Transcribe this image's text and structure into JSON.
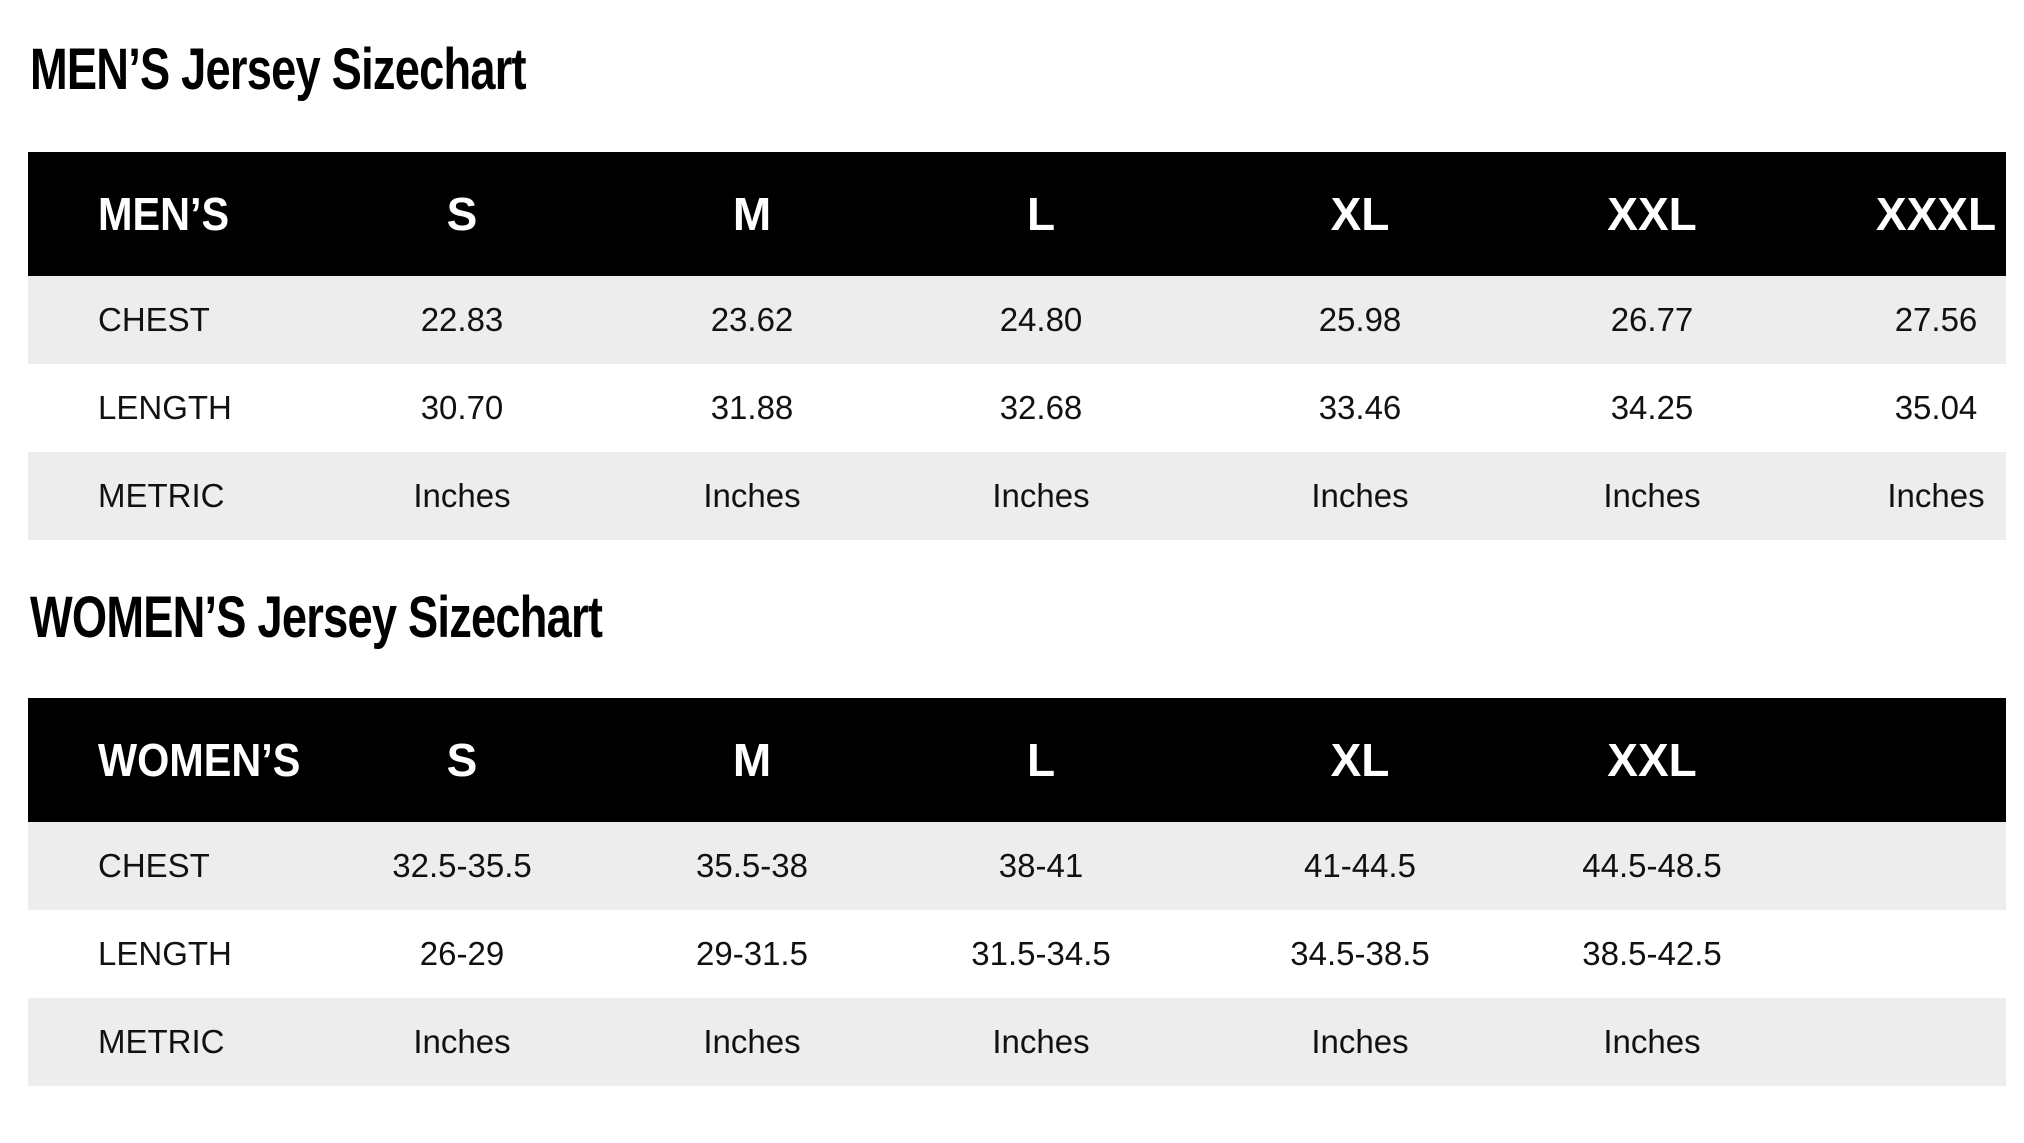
{
  "men": {
    "title": "MEN’S Jersey Sizechart",
    "header": [
      "MEN’S",
      "S",
      "M",
      "L",
      "XL",
      "XXL",
      "XXXL"
    ],
    "rows": [
      [
        "CHEST",
        "22.83",
        "23.62",
        "24.80",
        "25.98",
        "26.77",
        "27.56"
      ],
      [
        "LENGTH",
        "30.70",
        "31.88",
        "32.68",
        "33.46",
        "34.25",
        "35.04"
      ],
      [
        "METRIC",
        "Inches",
        "Inches",
        "Inches",
        "Inches",
        "Inches",
        "Inches"
      ]
    ]
  },
  "women": {
    "title": "WOMEN’S Jersey Sizechart",
    "header": [
      "WOMEN’S",
      "S",
      "M",
      "L",
      "XL",
      "XXL"
    ],
    "rows": [
      [
        "CHEST",
        "32.5-35.5",
        "35.5-38",
        "38-41",
        "41-44.5",
        "44.5-48.5"
      ],
      [
        "LENGTH",
        "26-29",
        "29-31.5",
        "31.5-34.5",
        "34.5-38.5",
        "38.5-42.5"
      ],
      [
        "METRIC",
        "Inches",
        "Inches",
        "Inches",
        "Inches",
        "Inches"
      ]
    ]
  }
}
